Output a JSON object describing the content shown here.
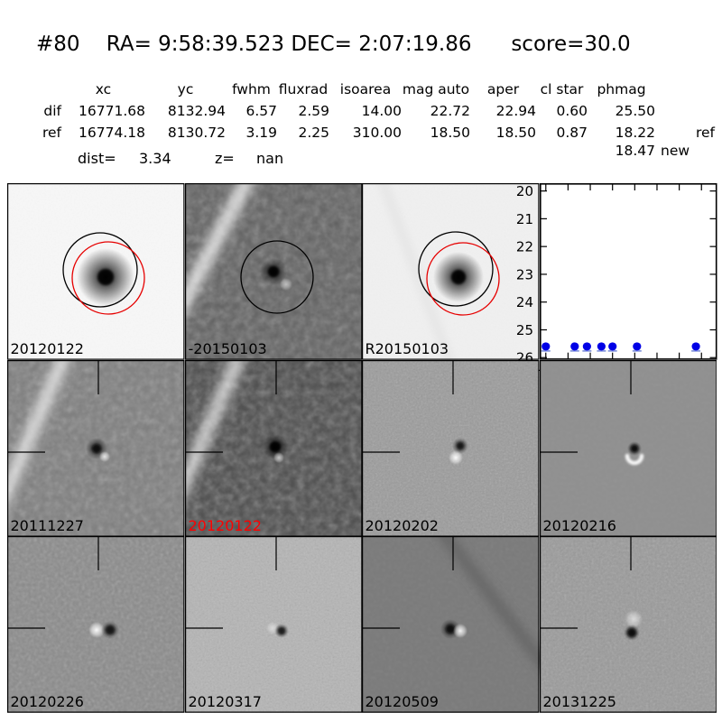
{
  "title": "#80    RA= 9:58:39.523 DEC= 2:07:19.86      score=30.0",
  "table": {
    "headers": [
      "xc",
      "yc",
      "fwhm",
      "fluxrad",
      "isoarea",
      "mag auto",
      "aper",
      "cl star",
      "phmag"
    ],
    "rows": [
      {
        "label": "dif",
        "xc": "16771.68",
        "yc": "8132.94",
        "fwhm": "6.57",
        "fluxrad": "2.59",
        "isoarea": "14.00",
        "mag_auto": "22.72",
        "aper": "22.94",
        "cl_star": "0.60",
        "phmag": "25.50",
        "suffix": ""
      },
      {
        "label": "ref",
        "xc": "16774.18",
        "yc": "8130.72",
        "fwhm": "3.19",
        "fluxrad": "2.25",
        "isoarea": "310.00",
        "mag_auto": "18.50",
        "aper": "18.50",
        "cl_star": "0.87",
        "phmag": "18.22",
        "suffix": "ref"
      }
    ],
    "extra": {
      "phmag": "18.47",
      "suffix": "new"
    },
    "dist_label": "dist=",
    "dist_value": "3.34",
    "z_label": "z=",
    "z_value": "nan"
  },
  "panels": [
    {
      "label": "20120122",
      "label_color": "#000000"
    },
    {
      "label": "-20150103",
      "label_color": "#000000"
    },
    {
      "label": "R20150103",
      "label_color": "#000000"
    },
    {
      "label": "20111227",
      "label_color": "#000000"
    },
    {
      "label": "20120122",
      "label_color": "#ff0000"
    },
    {
      "label": "20120202",
      "label_color": "#000000"
    },
    {
      "label": "20120216",
      "label_color": "#000000"
    },
    {
      "label": "20120226",
      "label_color": "#000000"
    },
    {
      "label": "20120317",
      "label_color": "#000000"
    },
    {
      "label": "20120509",
      "label_color": "#000000"
    },
    {
      "label": "20131225",
      "label_color": "#000000"
    }
  ],
  "annotation_colors": {
    "black_circle": "#000000",
    "red_circle": "#e60000",
    "crosshair": "#000000"
  },
  "chart_data": {
    "type": "scatter",
    "title": "",
    "xlabel": "",
    "ylabel": "",
    "x": [
      -20,
      6,
      17,
      30,
      40,
      62,
      115
    ],
    "y": [
      25.6,
      25.6,
      25.6,
      25.6,
      25.6,
      25.6,
      25.6
    ],
    "xticks": [
      -20,
      0,
      20,
      40,
      60,
      80,
      100,
      120
    ],
    "yticks": [
      20,
      21,
      22,
      23,
      24,
      25,
      26
    ],
    "xlim": [
      -25.5,
      134
    ],
    "ylim": [
      19.72,
      26.08
    ],
    "y_axis_inverted": true,
    "grid": false,
    "legend": "none",
    "marker_color": "#0000e6",
    "cap_color": "#8899dd"
  }
}
